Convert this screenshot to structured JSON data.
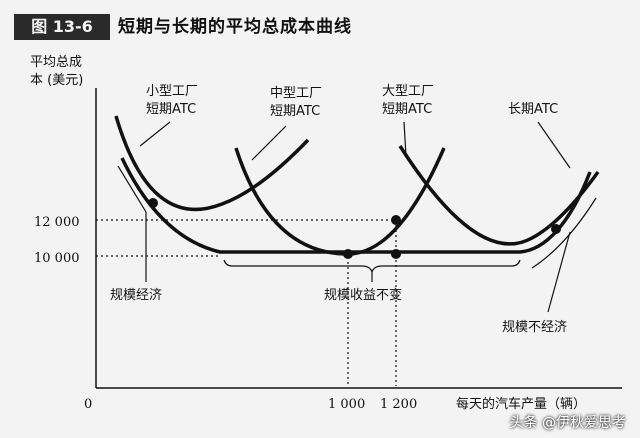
{
  "figure": {
    "label": "图 13-6",
    "title": "短期与长期的平均总成本曲线"
  },
  "watermark": "头条 @伊秋爱思考",
  "chart_data": {
    "type": "line",
    "ylabel_lines": [
      "平均总成",
      "本 (美元)"
    ],
    "xlabel": "每天的汽车产量（辆）",
    "origin_label": "0",
    "x_ticks": [
      {
        "value": 1000,
        "label": "1 000"
      },
      {
        "value": 1200,
        "label": "1 200"
      }
    ],
    "y_ticks": [
      {
        "value": 12000,
        "label": "12 000"
      },
      {
        "value": 10000,
        "label": "10 000"
      }
    ],
    "series": [
      {
        "key": "small",
        "label_lines": [
          "小型工厂",
          "短期ATC"
        ]
      },
      {
        "key": "medium",
        "label_lines": [
          "中型工厂",
          "短期ATC"
        ]
      },
      {
        "key": "large",
        "label_lines": [
          "大型工厂",
          "短期ATC"
        ]
      },
      {
        "key": "long",
        "label_lines": [
          "长期ATC"
        ]
      }
    ],
    "points": [
      {
        "x": 1000,
        "y": 10000
      },
      {
        "x": 1200,
        "y": 10000
      },
      {
        "x": 1200,
        "y": 12000
      }
    ],
    "regions": [
      {
        "key": "economies",
        "label": "规模经济"
      },
      {
        "key": "constant",
        "label": "规模收益不变"
      },
      {
        "key": "diseconomies",
        "label": "规模不经济"
      }
    ]
  }
}
